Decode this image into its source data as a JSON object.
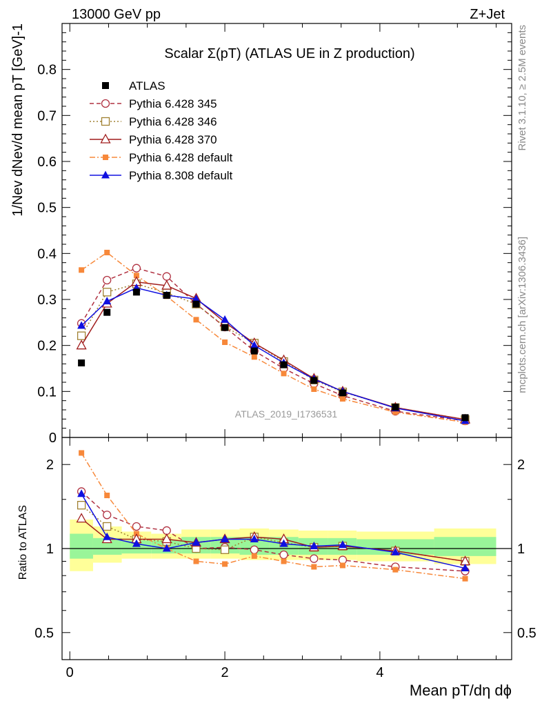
{
  "header": {
    "left": "13000 GeV pp",
    "right": "Z+Jet"
  },
  "side_labels": {
    "rivet": "Rivet 3.1.10, ≥ 2.5M events",
    "mcplots": "mcplots.cern.ch [arXiv:1306.3436]"
  },
  "chart_data": [
    {
      "type": "scatter",
      "panel": "main",
      "title": "Scalar Σ(pT) (ATLAS UE in Z production)",
      "ylabel": "1/Nev dNev/d mean pT [GeV]-1",
      "watermark": "ATLAS_2019_I1736531",
      "ylim": [
        0,
        0.9
      ],
      "y_ticks": [
        0,
        0.1,
        0.2,
        0.3,
        0.4,
        0.5,
        0.6,
        0.7,
        0.8
      ],
      "y_tick_labels": [
        "0",
        "0.1",
        "0.2",
        "0.3",
        "0.4",
        "0.5",
        "0.6",
        "0.7",
        "0.8"
      ],
      "legend_position": "top-left",
      "x": [
        0.15,
        0.48,
        0.86,
        1.25,
        1.63,
        2.0,
        2.38,
        2.76,
        3.15,
        3.52,
        4.2,
        5.1
      ],
      "data": {
        "name": "ATLAS",
        "color": "#000000",
        "values": [
          0.162,
          0.272,
          0.316,
          0.309,
          0.29,
          0.239,
          0.188,
          0.158,
          0.124,
          0.097,
          0.066,
          0.043
        ]
      },
      "series": [
        {
          "name": "Pythia 6.428 345",
          "color": "#b03040",
          "dash": "6,4",
          "marker": "circle-open",
          "values": [
            0.248,
            0.342,
            0.368,
            0.35,
            0.29,
            0.24,
            0.188,
            0.15,
            0.117,
            0.091,
            0.057,
            0.036
          ]
        },
        {
          "name": "Pythia 6.428 346",
          "color": "#a08030",
          "dash": "2,3",
          "marker": "square-open",
          "values": [
            0.221,
            0.316,
            0.334,
            0.314,
            0.29,
            0.241,
            0.205,
            0.165,
            0.125,
            0.099,
            0.065,
            0.039
          ]
        },
        {
          "name": "Pythia 6.428 370",
          "color": "#a01c1c",
          "dash": "",
          "marker": "triangle-open",
          "values": [
            0.2,
            0.291,
            0.338,
            0.33,
            0.302,
            0.25,
            0.205,
            0.168,
            0.128,
            0.1,
            0.065,
            0.039
          ]
        },
        {
          "name": "Pythia 6.428 default",
          "color": "#f7883a",
          "dash": "8,3,2,3",
          "marker": "square",
          "values": [
            0.364,
            0.402,
            0.352,
            0.307,
            0.256,
            0.207,
            0.175,
            0.139,
            0.105,
            0.084,
            0.055,
            0.033
          ]
        },
        {
          "name": "Pythia 8.308 default",
          "color": "#1010e0",
          "dash": "",
          "marker": "triangle",
          "values": [
            0.243,
            0.296,
            0.325,
            0.309,
            0.301,
            0.256,
            0.2,
            0.162,
            0.127,
            0.1,
            0.064,
            0.036
          ]
        }
      ]
    },
    {
      "type": "scatter",
      "panel": "ratio",
      "ylabel": "Ratio to ATLAS",
      "xlabel": "Mean pT/dη dϕ",
      "y_scale": "log",
      "ylim": [
        0.4,
        2.5
      ],
      "y_ticks": [
        0.5,
        1,
        2
      ],
      "y_tick_labels": [
        "0.5",
        "1",
        "2"
      ],
      "x_ticks": [
        0,
        2,
        4
      ],
      "x_tick_labels": [
        "0",
        "2",
        "4"
      ],
      "xlim": [
        -0.1,
        5.7
      ],
      "uncertainty_bands": [
        {
          "x_from": 0.0,
          "x_to": 0.3,
          "inner": [
            0.92,
            1.13
          ],
          "outer": [
            0.83,
            1.27
          ]
        },
        {
          "x_from": 0.3,
          "x_to": 0.67,
          "inner": [
            0.95,
            1.09
          ],
          "outer": [
            0.89,
            1.2
          ]
        },
        {
          "x_from": 0.67,
          "x_to": 1.05,
          "inner": [
            0.96,
            1.07
          ],
          "outer": [
            0.92,
            1.15
          ]
        },
        {
          "x_from": 1.05,
          "x_to": 1.44,
          "inner": [
            0.96,
            1.07
          ],
          "outer": [
            0.92,
            1.13
          ]
        },
        {
          "x_from": 1.44,
          "x_to": 1.82,
          "inner": [
            0.96,
            1.1
          ],
          "outer": [
            0.92,
            1.17
          ]
        },
        {
          "x_from": 1.82,
          "x_to": 2.19,
          "inner": [
            0.96,
            1.1
          ],
          "outer": [
            0.92,
            1.17
          ]
        },
        {
          "x_from": 2.19,
          "x_to": 2.57,
          "inner": [
            0.95,
            1.1
          ],
          "outer": [
            0.91,
            1.18
          ]
        },
        {
          "x_from": 2.57,
          "x_to": 2.95,
          "inner": [
            0.95,
            1.1
          ],
          "outer": [
            0.91,
            1.17
          ]
        },
        {
          "x_from": 2.95,
          "x_to": 3.33,
          "inner": [
            0.95,
            1.09
          ],
          "outer": [
            0.91,
            1.16
          ]
        },
        {
          "x_from": 3.33,
          "x_to": 3.7,
          "inner": [
            0.95,
            1.09
          ],
          "outer": [
            0.91,
            1.16
          ]
        },
        {
          "x_from": 3.7,
          "x_to": 4.7,
          "inner": [
            0.95,
            1.08
          ],
          "outer": [
            0.9,
            1.15
          ]
        },
        {
          "x_from": 4.7,
          "x_to": 5.5,
          "inner": [
            0.94,
            1.1
          ],
          "outer": [
            0.88,
            1.18
          ]
        }
      ],
      "series": [
        {
          "name": "Pythia 6.428 345",
          "values": [
            1.6,
            1.32,
            1.2,
            1.16,
            1.0,
            1.01,
            0.99,
            0.95,
            0.92,
            0.91,
            0.86,
            0.83
          ]
        },
        {
          "name": "Pythia 6.428 346",
          "values": [
            1.43,
            1.2,
            1.08,
            1.06,
            1.0,
            0.99,
            1.1,
            1.05,
            1.01,
            1.02,
            0.98,
            0.9
          ]
        },
        {
          "name": "Pythia 6.428 370",
          "values": [
            1.28,
            1.08,
            1.08,
            1.08,
            1.05,
            1.08,
            1.1,
            1.08,
            1.01,
            1.02,
            0.98,
            0.9
          ]
        },
        {
          "name": "Pythia 6.428 default",
          "values": [
            2.2,
            1.55,
            1.13,
            1.0,
            0.9,
            0.88,
            0.94,
            0.9,
            0.86,
            0.87,
            0.84,
            0.78
          ]
        },
        {
          "name": "Pythia 8.308 default",
          "values": [
            1.57,
            1.1,
            1.04,
            1.0,
            1.05,
            1.08,
            1.08,
            1.04,
            1.02,
            1.03,
            0.97,
            0.85
          ]
        }
      ]
    }
  ]
}
